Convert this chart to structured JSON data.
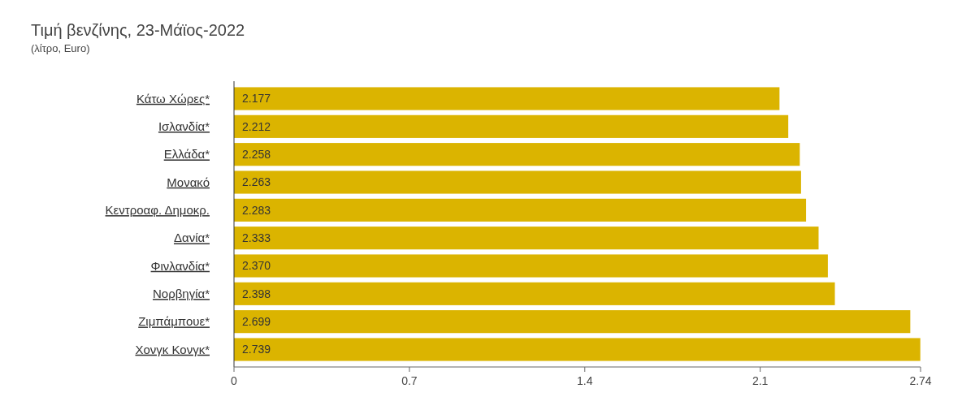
{
  "chart_data": {
    "type": "bar",
    "orientation": "horizontal",
    "title": "Τιμή βενζίνης, 23-Μάϊος-2022",
    "subtitle": "(λίτρο, Euro)",
    "categories": [
      "Κάτω Χώρες*",
      "Ισλανδία*",
      "Ελλάδα*",
      "Μονακό",
      "Κεντροαφ. Δημοκρ.",
      "Δανία*",
      "Φινλανδία*",
      "Νορβηγία*",
      "Ζιμπάμπουε*",
      "Χονγκ Κονγκ*"
    ],
    "values": [
      2.177,
      2.212,
      2.258,
      2.263,
      2.283,
      2.333,
      2.37,
      2.398,
      2.699,
      2.739
    ],
    "value_labels": [
      "2.177",
      "2.212",
      "2.258",
      "2.263",
      "2.283",
      "2.333",
      "2.370",
      "2.398",
      "2.699",
      "2.739"
    ],
    "color": "#dbb400",
    "xlim": [
      0,
      2.74
    ],
    "xticks": [
      0,
      0.7,
      1.4,
      2.1,
      2.74
    ]
  }
}
